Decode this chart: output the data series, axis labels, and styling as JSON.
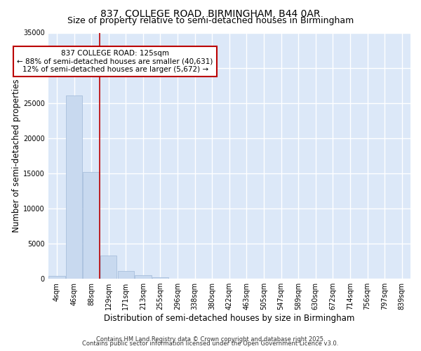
{
  "title_line1": "837, COLLEGE ROAD, BIRMINGHAM, B44 0AR",
  "title_line2": "Size of property relative to semi-detached houses in Birmingham",
  "xlabel": "Distribution of semi-detached houses by size in Birmingham",
  "ylabel": "Number of semi-detached properties",
  "categories": [
    "4sqm",
    "46sqm",
    "88sqm",
    "129sqm",
    "171sqm",
    "213sqm",
    "255sqm",
    "296sqm",
    "338sqm",
    "380sqm",
    "422sqm",
    "463sqm",
    "505sqm",
    "547sqm",
    "589sqm",
    "630sqm",
    "672sqm",
    "714sqm",
    "756sqm",
    "797sqm",
    "839sqm"
  ],
  "bar_values": [
    400,
    26100,
    15200,
    3300,
    1100,
    500,
    200,
    0,
    0,
    0,
    0,
    0,
    0,
    0,
    0,
    0,
    0,
    0,
    0,
    0,
    0
  ],
  "bar_color": "#c8d9ef",
  "bar_edge_color": "#a0b8d8",
  "vline_x_index": 2.5,
  "vline_color": "#bb0000",
  "annotation_line1": "837 COLLEGE ROAD: 125sqm",
  "annotation_line2": "← 88% of semi-detached houses are smaller (40,631)",
  "annotation_line3": "12% of semi-detached houses are larger (5,672) →",
  "annotation_box_color": "#ffffff",
  "annotation_box_edge": "#bb0000",
  "ylim": [
    0,
    35000
  ],
  "yticks": [
    0,
    5000,
    10000,
    15000,
    20000,
    25000,
    30000,
    35000
  ],
  "background_color": "#dce8f8",
  "grid_color": "#ffffff",
  "fig_background": "#ffffff",
  "footer_line1": "Contains HM Land Registry data © Crown copyright and database right 2025.",
  "footer_line2": "Contains public sector information licensed under the Open Government Licence v3.0.",
  "title_fontsize": 10,
  "subtitle_fontsize": 9,
  "axis_label_fontsize": 8.5,
  "tick_fontsize": 7,
  "annotation_fontsize": 7.5,
  "footer_fontsize": 6
}
